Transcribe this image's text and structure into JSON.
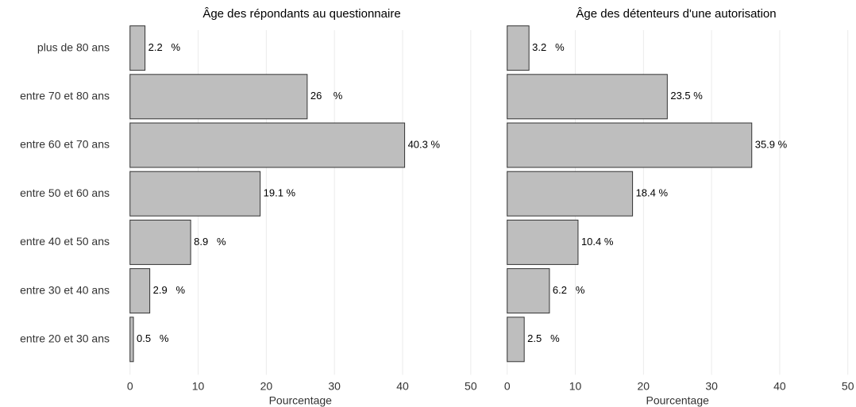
{
  "chart_data": [
    {
      "type": "bar",
      "orientation": "horizontal",
      "title": "Âge des répondants au questionnaire",
      "x_label": "Pourcentage",
      "categories": [
        "plus de 80 ans",
        "entre 70 et 80 ans",
        "entre 60 et 70 ans",
        "entre 50 et 60 ans",
        "entre 40 et 50 ans",
        "entre 30 et 40 ans",
        "entre 20 et 30 ans"
      ],
      "values": [
        2.2,
        26,
        40.3,
        19.1,
        8.9,
        2.9,
        0.5
      ],
      "value_labels": [
        "2.2   %",
        "26    %",
        "40.3 %",
        "19.1 %",
        "8.9   %",
        "2.9   %",
        "0.5   %"
      ],
      "color": "#bebebe",
      "xlim": [
        -1.6,
        52
      ],
      "xticks": [
        0,
        10,
        20,
        30,
        40,
        50
      ],
      "grid": true
    },
    {
      "type": "bar",
      "orientation": "horizontal",
      "title": "Âge des détenteurs d'une autorisation",
      "x_label": "Pourcentage",
      "values": [
        3.2,
        23.5,
        35.9,
        18.4,
        10.4,
        6.2,
        2.5
      ],
      "value_labels": [
        "3.2   %",
        "23.5 %",
        "35.9 %",
        "18.4 %",
        "10.4 %",
        "6.2   %",
        "2.5   %"
      ],
      "color": "#bebebe",
      "xlim": [
        -1.6,
        51.2
      ],
      "xticks": [
        0,
        10,
        20,
        30,
        40,
        50
      ],
      "grid": true
    }
  ]
}
